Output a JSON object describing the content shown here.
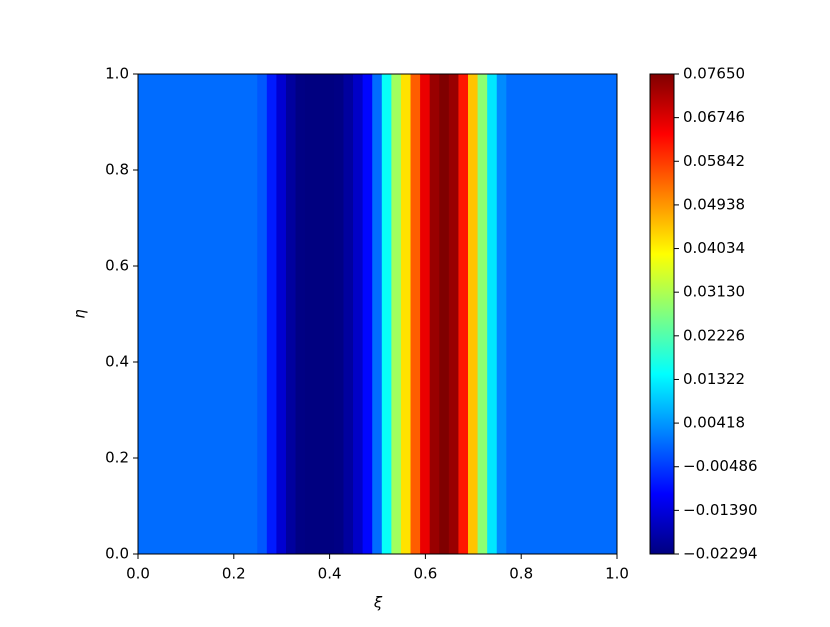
{
  "chart_data": {
    "type": "heatmap",
    "colormap": "jet",
    "xlabel": "ξ",
    "ylabel": "η",
    "x": [
      0,
      0.02,
      0.04,
      0.06,
      0.08,
      0.1,
      0.12,
      0.14,
      0.16,
      0.18,
      0.2,
      0.22,
      0.24,
      0.26,
      0.28,
      0.3,
      0.32,
      0.34,
      0.36,
      0.38,
      0.4,
      0.42,
      0.44,
      0.46,
      0.48,
      0.5,
      0.52,
      0.54,
      0.56,
      0.58,
      0.6,
      0.62,
      0.64,
      0.66,
      0.68,
      0.7,
      0.72,
      0.74,
      0.76,
      0.78,
      0.8,
      0.82,
      0.84,
      0.86,
      0.88,
      0.9,
      0.92,
      0.94,
      0.96,
      0.98,
      1.0
    ],
    "values": [
      0,
      0,
      0,
      0,
      0,
      0,
      0,
      0,
      0,
      0,
      0,
      0,
      0,
      -0.002,
      -0.008,
      -0.015,
      -0.02,
      -0.0225,
      -0.0229,
      -0.0229,
      -0.0229,
      -0.0225,
      -0.02,
      -0.016,
      -0.01,
      0,
      0.015,
      0.03,
      0.042,
      0.055,
      0.066,
      0.074,
      0.0765,
      0.074,
      0.062,
      0.045,
      0.028,
      0.012,
      0.003,
      0,
      0,
      0,
      0,
      0,
      0,
      0,
      0,
      0,
      0,
      0,
      0
    ],
    "xlim": [
      0,
      1
    ],
    "ylim": [
      0,
      1
    ],
    "xticks": [
      {
        "value": 0,
        "label": "0.0"
      },
      0.2,
      0.4,
      0.6,
      0.8,
      {
        "value": 1,
        "label": "1.0"
      }
    ],
    "yticks": [
      {
        "value": 0,
        "label": "0.0"
      },
      0.2,
      0.4,
      0.6,
      0.8,
      {
        "value": 1,
        "label": "1.0"
      }
    ],
    "clim": [
      -0.02294,
      0.0765
    ],
    "cticks": [
      {
        "value": -0.02294,
        "label": "−0.02294"
      },
      {
        "value": -0.0139,
        "label": "−0.01390"
      },
      {
        "value": -0.00486,
        "label": "−0.00486"
      },
      0.00418,
      0.01322,
      0.02226,
      {
        "value": 0.0313,
        "label": "0.03130"
      },
      0.04034,
      0.04938,
      0.05842,
      0.06746,
      {
        "value": 0.0765,
        "label": "0.07650"
      }
    ]
  }
}
